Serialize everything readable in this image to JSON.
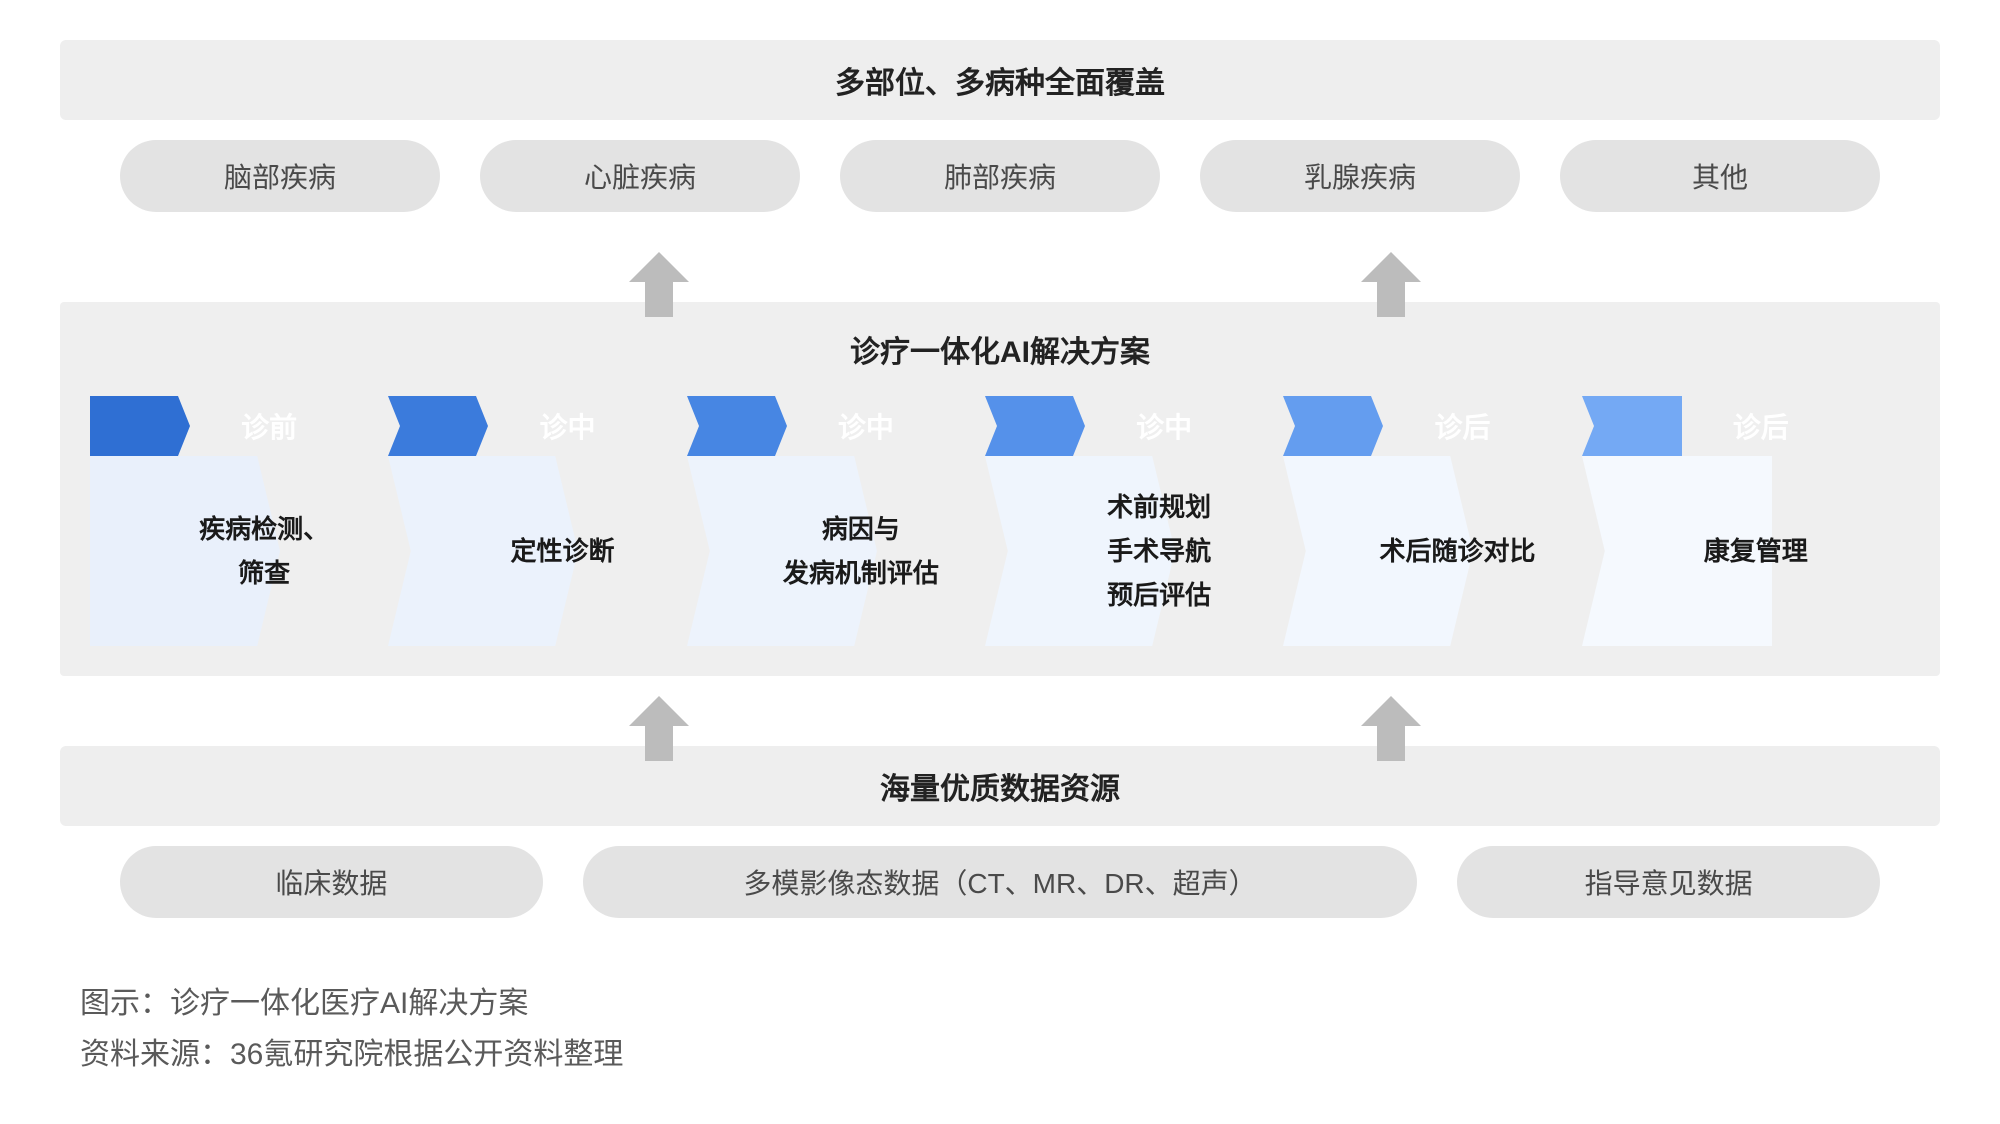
{
  "top": {
    "title": "多部位、多病种全面覆盖",
    "pills": [
      "脑部疾病",
      "心脏疾病",
      "肺部疾病",
      "乳腺疾病",
      "其他"
    ]
  },
  "middle": {
    "title": "诊疗一体化AI解决方案",
    "background_color": "#efefef",
    "stages": [
      {
        "phase": "诊前",
        "lines": [
          "疾病检测、",
          "筛查"
        ],
        "header_color": "#2f6fd3",
        "body_color": "#e9f0fb"
      },
      {
        "phase": "诊中",
        "lines": [
          "定性诊断"
        ],
        "header_color": "#3b7bdc",
        "body_color": "#ebf2fc"
      },
      {
        "phase": "诊中",
        "lines": [
          "病因与",
          "发病机制评估"
        ],
        "header_color": "#4786e3",
        "body_color": "#edf3fc"
      },
      {
        "phase": "诊中",
        "lines": [
          "术前规划",
          "手术导航",
          "预后评估"
        ],
        "header_color": "#5591ea",
        "body_color": "#eff5fd"
      },
      {
        "phase": "诊后",
        "lines": [
          "术后随诊对比"
        ],
        "header_color": "#649def",
        "body_color": "#f2f7fe"
      },
      {
        "phase": "诊后",
        "lines": [
          "康复管理"
        ],
        "header_color": "#74a9f4",
        "body_color": "#f5f9fe"
      }
    ]
  },
  "bottom": {
    "title": "海量优质数据资源",
    "pills": [
      {
        "label": "临床数据",
        "width": "narrow"
      },
      {
        "label": "多模影像态数据（CT、MR、DR、超声）",
        "width": "wide"
      },
      {
        "label": "指导意见数据",
        "width": "narrow"
      }
    ]
  },
  "caption": {
    "line1": "图示：诊疗一体化医疗AI解决方案",
    "line2": "资料来源：36氪研究院根据公开资料整理"
  },
  "style": {
    "pill_bg": "#e3e3e3",
    "pill_fg": "#4a4a4a",
    "header_bg": "#eeeeee",
    "arrow_color": "#bcbcbc",
    "title_fontsize": 30,
    "pill_fontsize": 28,
    "stage_header_fontsize": 28,
    "stage_body_fontsize": 26,
    "caption_fontsize": 30,
    "caption_color": "#5a5a5a"
  }
}
